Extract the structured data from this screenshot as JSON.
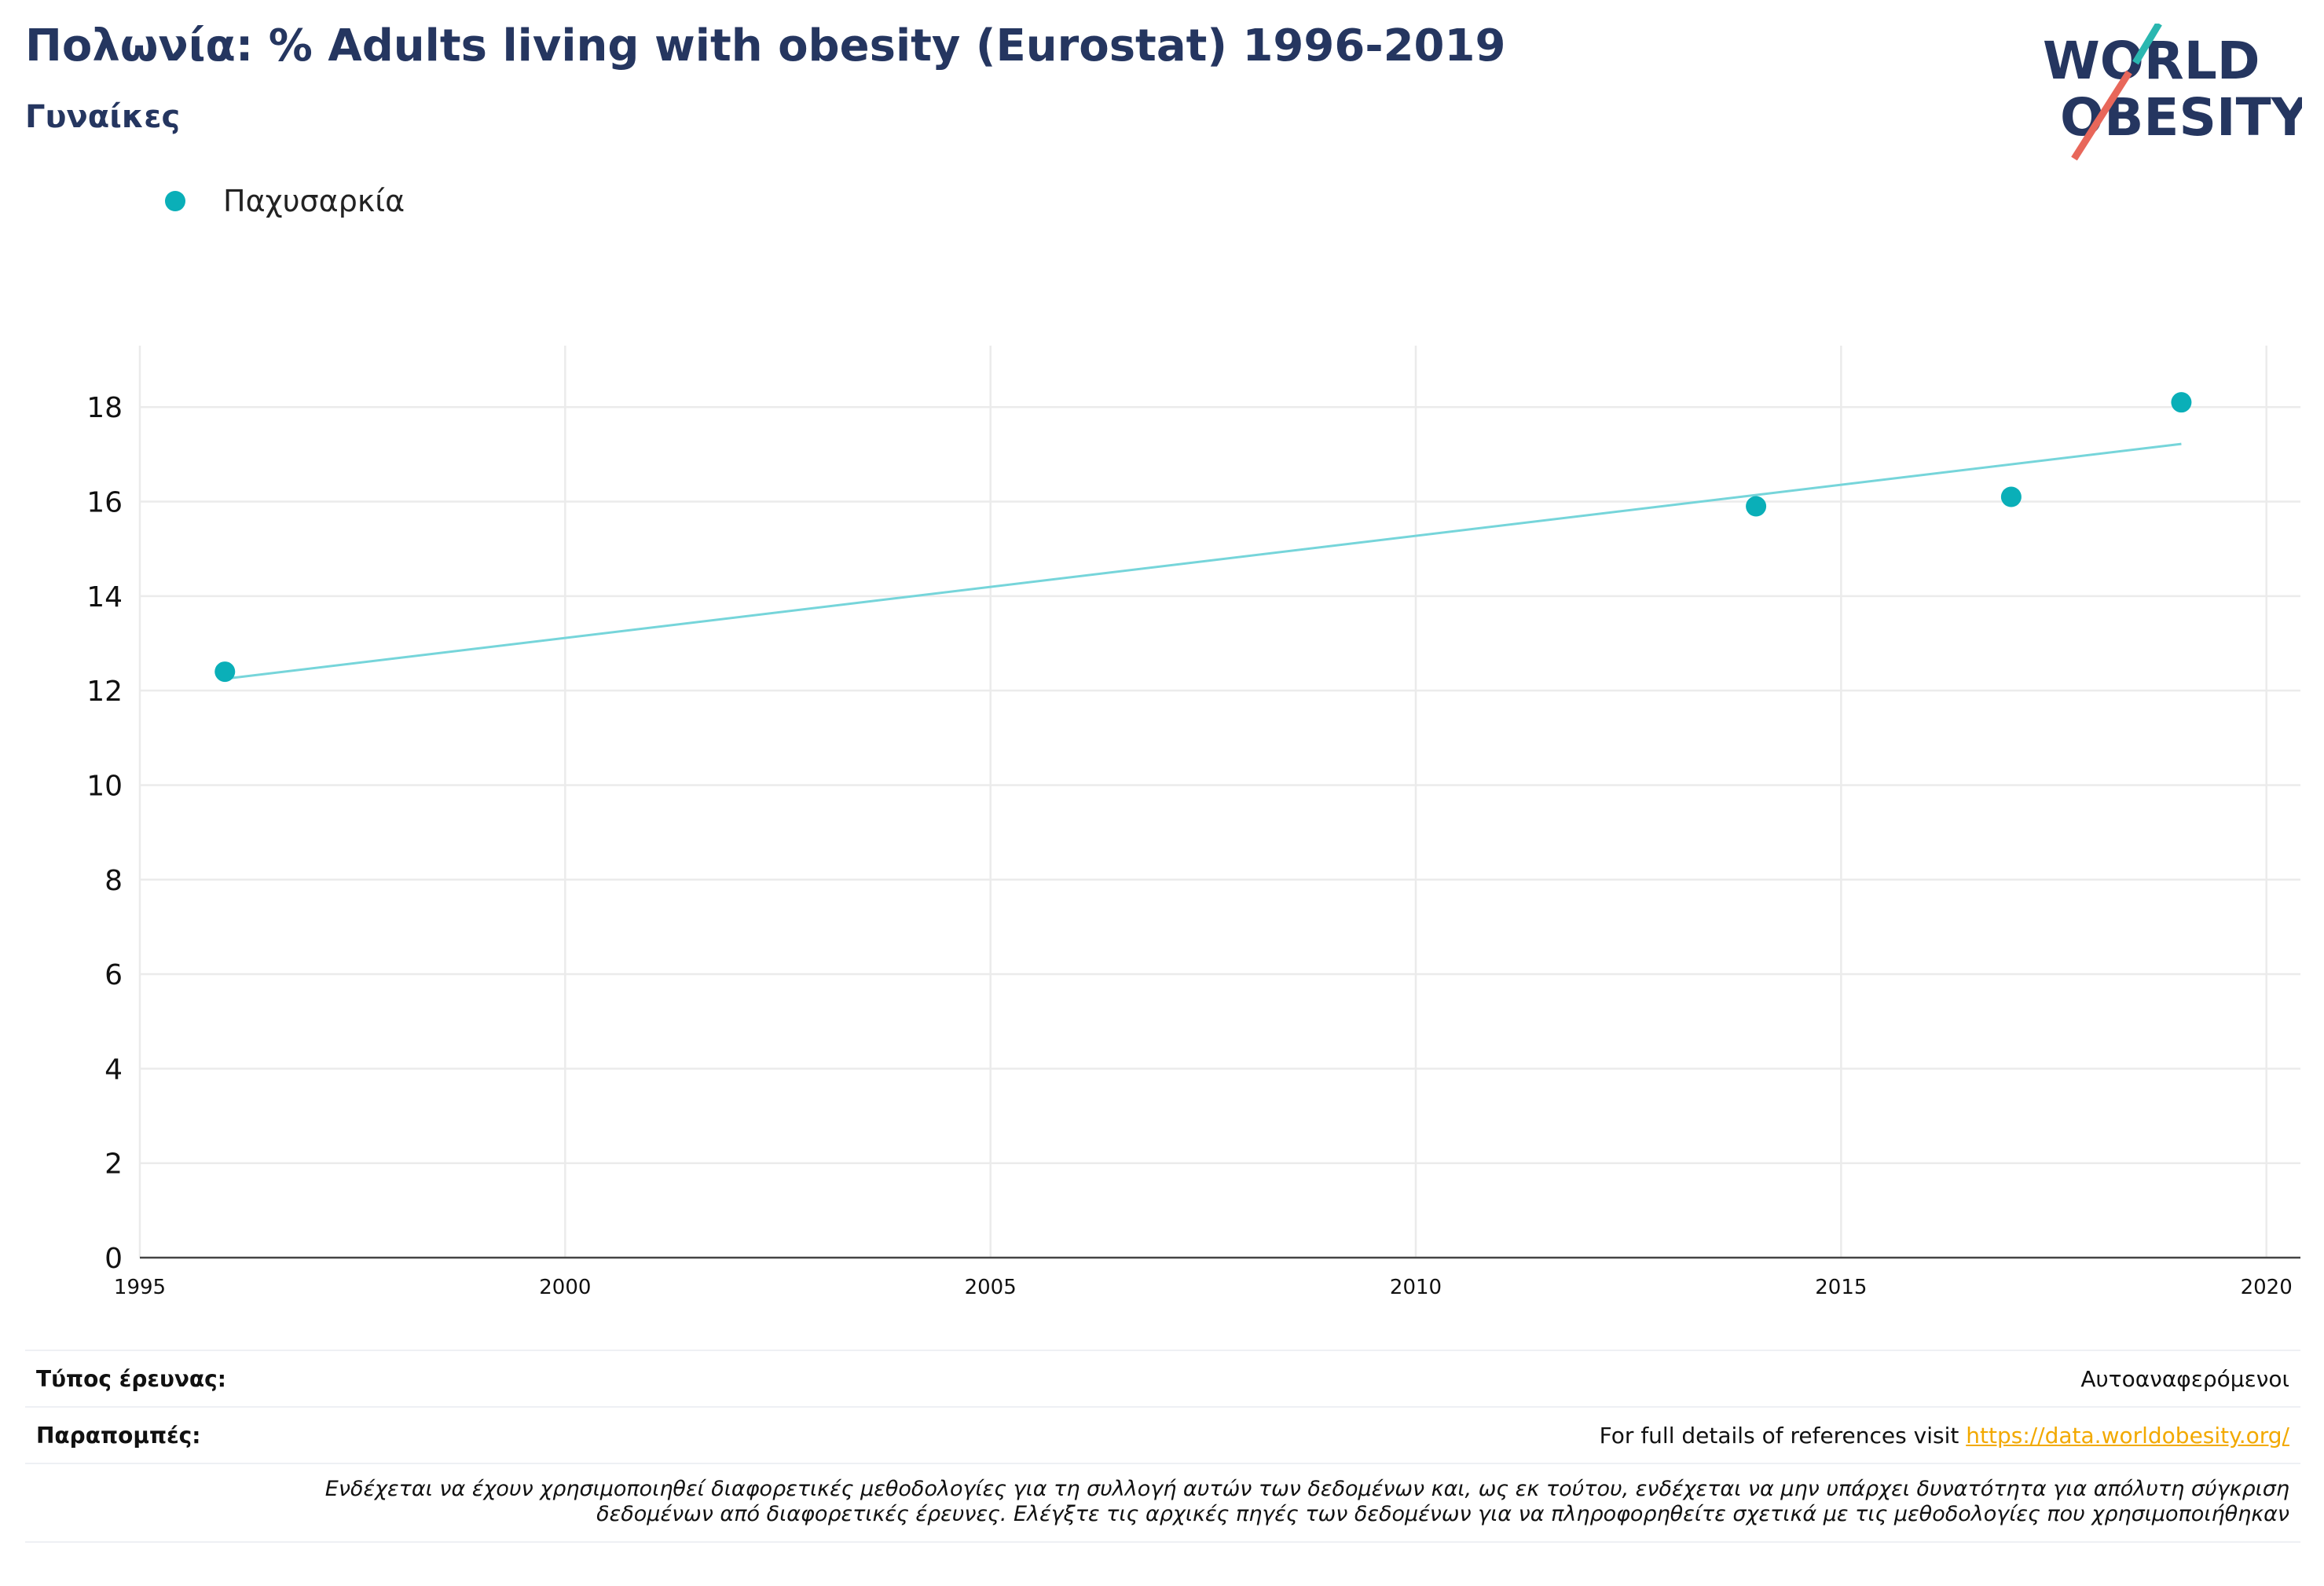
{
  "header": {
    "title": "Πολωνία: % Adults living with obesity (Eurostat) 1996-2019",
    "subtitle": "Γυναίκες"
  },
  "logo": {
    "line1": "WORLD",
    "line2": "OBESITY",
    "accent1": "#2ab7b0",
    "accent2": "#e8675a",
    "text_color": "#253660"
  },
  "legend": {
    "label": "Παχυσαρκία",
    "color": "#0aafb8"
  },
  "chart_data": {
    "type": "scatter",
    "series": [
      {
        "name": "Παχυσαρκία",
        "x": [
          1996,
          2014,
          2017,
          2019
        ],
        "y": [
          12.4,
          15.9,
          16.1,
          18.1
        ],
        "color": "#0aafb8"
      }
    ],
    "trendline": {
      "x": [
        1996,
        2019
      ],
      "y": [
        12.25,
        17.22
      ],
      "color": "#76d5da"
    },
    "x_ticks": [
      1995,
      2000,
      2005,
      2010,
      2015,
      2020
    ],
    "y_ticks": [
      0,
      2,
      4,
      6,
      8,
      10,
      12,
      14,
      16,
      18
    ],
    "xlim": [
      1995,
      2020.4
    ],
    "ylim": [
      0,
      19.3
    ],
    "grid": true
  },
  "footer": {
    "survey_type_label": "Τύπος έρευνας:",
    "survey_type_value": "Αυτοαναφερόμενοι",
    "references_label": "Παραπομπές:",
    "references_text": "For full details of references visit ",
    "references_link": "https://data.worldobesity.org/",
    "disclaimer_line1": "Ενδέχεται να έχουν χρησιμοποιηθεί διαφορετικές μεθοδολογίες για τη συλλογή αυτών των δεδομένων και, ως εκ τούτου, ενδέχεται να μην υπάρχει δυνατότητα για απόλυτη σύγκριση",
    "disclaimer_line2": "δεδομένων από διαφορετικές έρευνες. Ελέγξτε τις αρχικές πηγές των δεδομένων για να πληροφορηθείτε σχετικά με τις μεθοδολογίες που χρησιμοποιήθηκαν"
  }
}
